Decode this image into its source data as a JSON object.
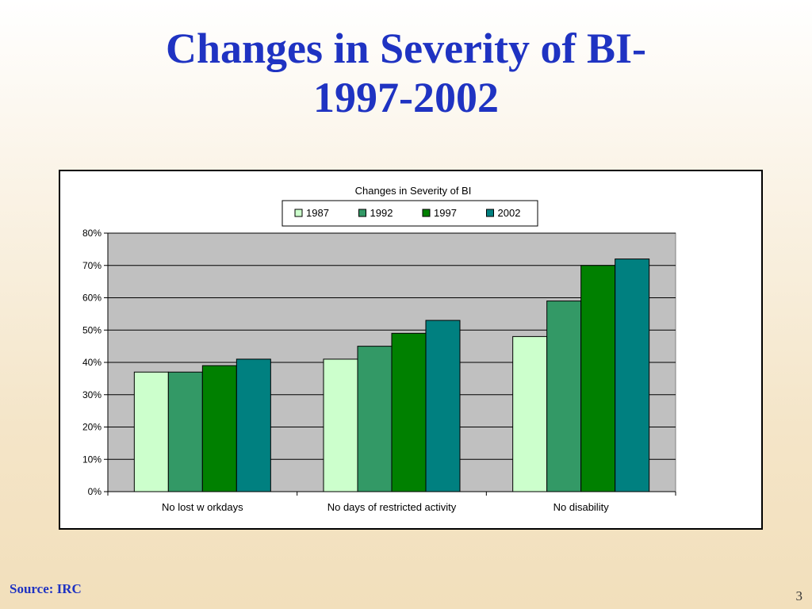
{
  "slide": {
    "title_line1": "Changes in Severity of BI-",
    "title_line2": "1997-2002",
    "source": "Source: IRC",
    "page_number": "3"
  },
  "chart_data": {
    "type": "bar",
    "title": "Changes in Severity of BI",
    "categories": [
      "No lost w orkdays",
      "No days of restricted activity",
      "No disability"
    ],
    "series": [
      {
        "name": "1987",
        "color": "#ccffcc",
        "values": [
          37,
          41,
          48
        ]
      },
      {
        "name": "1992",
        "color": "#339966",
        "values": [
          37,
          45,
          59
        ]
      },
      {
        "name": "1997",
        "color": "#008000",
        "values": [
          39,
          49,
          70
        ]
      },
      {
        "name": "2002",
        "color": "#008080",
        "values": [
          41,
          53,
          72
        ]
      }
    ],
    "ylim": [
      0,
      80
    ],
    "yticks": [
      0,
      10,
      20,
      30,
      40,
      50,
      60,
      70,
      80
    ],
    "ytick_labels": [
      "0%",
      "10%",
      "20%",
      "30%",
      "40%",
      "50%",
      "60%",
      "70%",
      "80%"
    ],
    "xlabel": "",
    "ylabel": "",
    "grid": true,
    "plot_background": "#c0c0c0",
    "legend_position": "top-center"
  }
}
